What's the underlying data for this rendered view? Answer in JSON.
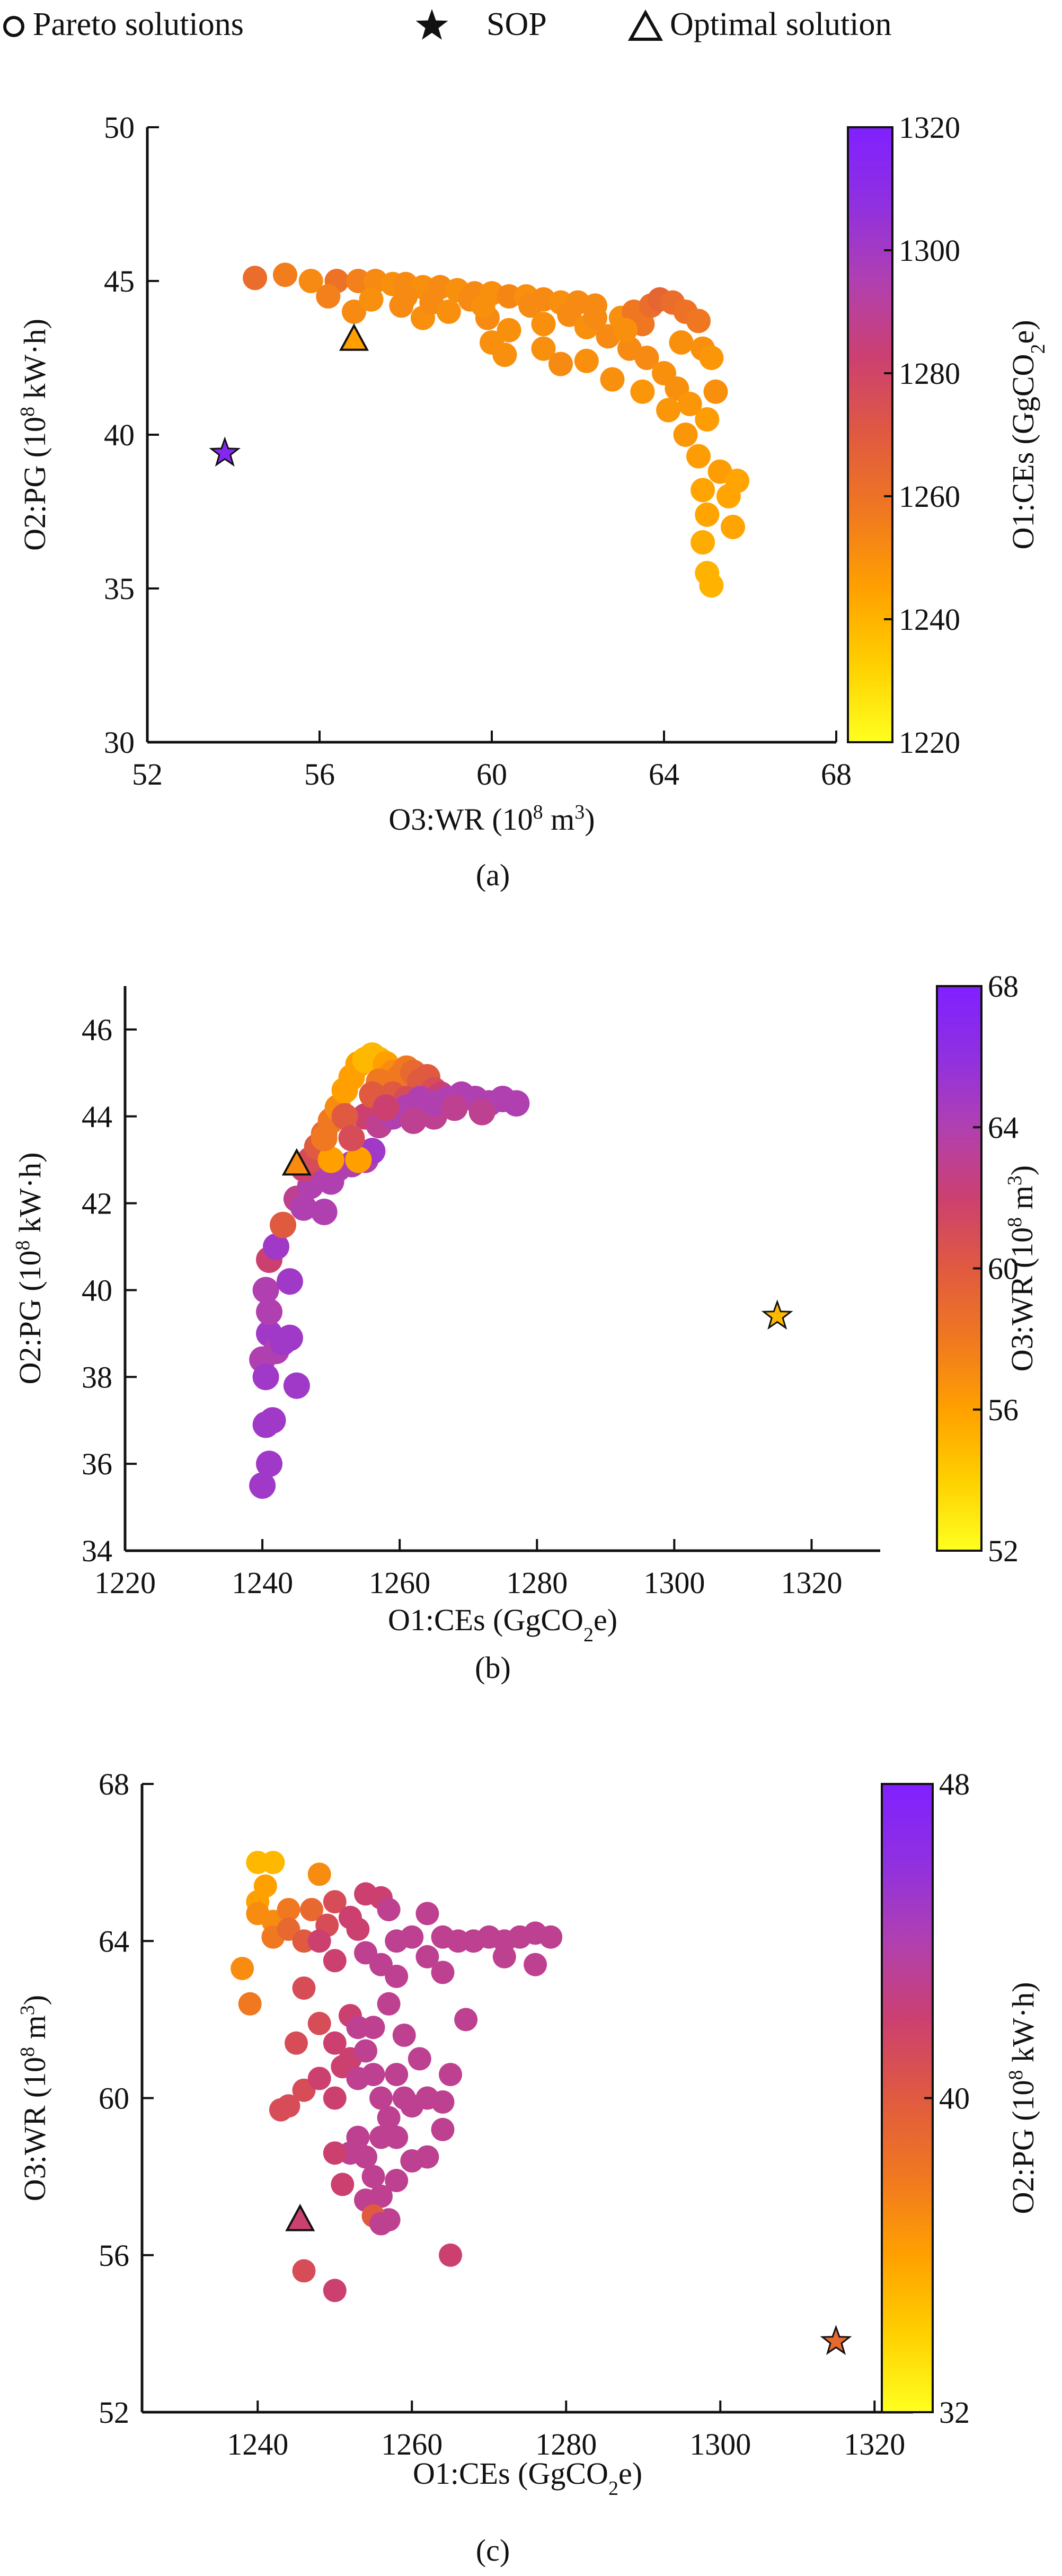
{
  "legend": {
    "items": [
      {
        "label": "Pareto solutions",
        "marker": "circle-icon"
      },
      {
        "label": "SOP",
        "marker": "star-icon"
      },
      {
        "label": "Optimal solution",
        "marker": "triangle-icon"
      }
    ]
  },
  "colors": {
    "axis": "#111111",
    "gradient": [
      "#ffff20",
      "#ffd000",
      "#ffa000",
      "#f07820",
      "#e05a40",
      "#cc4070",
      "#b040b0",
      "#9030e0",
      "#8020ff"
    ]
  },
  "chart_data": [
    {
      "type": "scatter",
      "caption": "(a)",
      "xlabel": {
        "pre": "O3:WR (10",
        "sup": "8",
        "mid": " m",
        "sup2": "3",
        "post": ")"
      },
      "ylabel": {
        "pre": "O2:PG (10",
        "sup": "8",
        "post": " kW·h)"
      },
      "clabel": {
        "pre": "O1:CEs (GgCO",
        "sub": "2",
        "post": "e)"
      },
      "xlim": [
        52,
        68
      ],
      "ylim": [
        30,
        50
      ],
      "clim": [
        1220,
        1320
      ],
      "xticks": [
        52,
        56,
        60,
        64,
        68
      ],
      "yticks": [
        30,
        35,
        40,
        45,
        50
      ],
      "cticks": [
        1220,
        1240,
        1260,
        1280,
        1300,
        1320
      ],
      "sop": {
        "x": 53.8,
        "y": 39.4,
        "c": 1315
      },
      "optimal": {
        "x": 56.8,
        "y": 43.1,
        "c": 1245
      },
      "points": [
        [
          54.5,
          45.1,
          1262
        ],
        [
          55.2,
          45.2,
          1256
        ],
        [
          55.8,
          45.0,
          1252
        ],
        [
          56.4,
          45.0,
          1260
        ],
        [
          56.9,
          45.0,
          1255
        ],
        [
          57.3,
          45.0,
          1252
        ],
        [
          57.7,
          44.9,
          1250
        ],
        [
          58.0,
          44.9,
          1252
        ],
        [
          58.4,
          44.8,
          1250
        ],
        [
          58.8,
          44.8,
          1252
        ],
        [
          59.2,
          44.7,
          1250
        ],
        [
          59.6,
          44.6,
          1252
        ],
        [
          60.0,
          44.6,
          1250
        ],
        [
          60.4,
          44.5,
          1253
        ],
        [
          60.8,
          44.5,
          1250
        ],
        [
          61.2,
          44.4,
          1252
        ],
        [
          61.6,
          44.3,
          1250
        ],
        [
          62.0,
          44.3,
          1252
        ],
        [
          62.4,
          44.2,
          1252
        ],
        [
          56.2,
          44.5,
          1255
        ],
        [
          56.8,
          44.0,
          1252
        ],
        [
          57.2,
          44.4,
          1250
        ],
        [
          57.9,
          44.2,
          1252
        ],
        [
          58.4,
          43.8,
          1250
        ],
        [
          58.6,
          44.3,
          1252
        ],
        [
          59.0,
          44.0,
          1250
        ],
        [
          59.5,
          44.4,
          1252
        ],
        [
          59.9,
          43.8,
          1252
        ],
        [
          60.4,
          43.4,
          1250
        ],
        [
          60.9,
          44.2,
          1252
        ],
        [
          61.2,
          43.6,
          1250
        ],
        [
          61.8,
          43.9,
          1252
        ],
        [
          62.2,
          43.5,
          1250
        ],
        [
          62.7,
          43.2,
          1252
        ],
        [
          63.0,
          43.8,
          1250
        ],
        [
          63.3,
          44.0,
          1258
        ],
        [
          63.5,
          43.6,
          1258
        ],
        [
          63.7,
          44.2,
          1262
        ],
        [
          63.9,
          44.4,
          1265
        ],
        [
          64.2,
          44.3,
          1262
        ],
        [
          64.5,
          44.0,
          1260
        ],
        [
          64.8,
          43.7,
          1258
        ],
        [
          63.2,
          42.8,
          1252
        ],
        [
          63.6,
          42.5,
          1252
        ],
        [
          64.0,
          42.0,
          1250
        ],
        [
          64.3,
          41.5,
          1250
        ],
        [
          64.6,
          41.0,
          1248
        ],
        [
          64.9,
          42.8,
          1250
        ],
        [
          65.1,
          42.5,
          1248
        ],
        [
          65.2,
          41.4,
          1250
        ],
        [
          60.0,
          43.0,
          1250
        ],
        [
          60.3,
          42.6,
          1250
        ],
        [
          61.2,
          42.8,
          1250
        ],
        [
          62.2,
          42.4,
          1250
        ],
        [
          61.6,
          42.3,
          1252
        ],
        [
          62.8,
          41.8,
          1250
        ],
        [
          63.5,
          41.4,
          1248
        ],
        [
          64.1,
          40.8,
          1248
        ],
        [
          64.5,
          40.0,
          1248
        ],
        [
          64.8,
          39.3,
          1246
        ],
        [
          65.0,
          40.5,
          1246
        ],
        [
          65.3,
          38.8,
          1246
        ],
        [
          65.7,
          38.5,
          1244
        ],
        [
          65.5,
          38.0,
          1244
        ],
        [
          65.6,
          37.0,
          1244
        ],
        [
          65.0,
          37.4,
          1244
        ],
        [
          64.9,
          36.5,
          1242
        ],
        [
          65.0,
          35.5,
          1240
        ],
        [
          65.1,
          35.1,
          1240
        ],
        [
          64.9,
          38.2,
          1244
        ],
        [
          58.0,
          44.5,
          1252
        ],
        [
          59.8,
          44.2,
          1250
        ],
        [
          62.4,
          43.8,
          1252
        ],
        [
          63.1,
          43.4,
          1250
        ],
        [
          64.4,
          43.0,
          1250
        ]
      ]
    },
    {
      "type": "scatter",
      "caption": "(b)",
      "xlabel": {
        "pre": "O1:CEs (GgCO",
        "sub": "2",
        "post": "e)"
      },
      "ylabel": {
        "pre": "O2:PG (10",
        "sup": "8",
        "post": " kW·h)"
      },
      "clabel": {
        "pre": "O3:WR (10",
        "sup": "8",
        "mid": " m",
        "sup2": "3",
        "post": ")"
      },
      "xlim": [
        1220,
        1330
      ],
      "ylim": [
        34,
        47
      ],
      "clim": [
        52,
        68
      ],
      "xticks": [
        1220,
        1240,
        1260,
        1280,
        1300,
        1320
      ],
      "yticks": [
        34,
        36,
        38,
        40,
        42,
        44,
        46
      ],
      "cticks": [
        52,
        56,
        60,
        64,
        68
      ],
      "sop": {
        "x": 1315,
        "y": 39.4,
        "c": 55
      },
      "optimal": {
        "x": 1245,
        "y": 42.9,
        "c": 57
      },
      "points": [
        [
          1240,
          35.5,
          65
        ],
        [
          1240.5,
          36.9,
          65
        ],
        [
          1241.5,
          37.0,
          65
        ],
        [
          1241,
          36.0,
          65
        ],
        [
          1240,
          38.4,
          64
        ],
        [
          1240.5,
          38.0,
          65
        ],
        [
          1241,
          39.0,
          65
        ],
        [
          1241,
          39.5,
          64
        ],
        [
          1240.5,
          40.0,
          64
        ],
        [
          1241,
          40.7,
          62
        ],
        [
          1242,
          41.0,
          65
        ],
        [
          1242,
          38.6,
          64
        ],
        [
          1243,
          38.8,
          65
        ],
        [
          1244,
          38.9,
          65
        ],
        [
          1244,
          40.2,
          65
        ],
        [
          1245,
          37.8,
          65
        ],
        [
          1243,
          41.5,
          60
        ],
        [
          1245,
          42.1,
          63
        ],
        [
          1246,
          41.9,
          64
        ],
        [
          1247,
          42.4,
          64
        ],
        [
          1248,
          42.7,
          64
        ],
        [
          1249,
          41.8,
          64
        ],
        [
          1250,
          42.5,
          64
        ],
        [
          1251,
          42.8,
          64
        ],
        [
          1253,
          42.9,
          64
        ],
        [
          1255,
          43.0,
          64
        ],
        [
          1256,
          43.2,
          65
        ],
        [
          1246,
          42.8,
          62
        ],
        [
          1247,
          43.0,
          61
        ],
        [
          1248,
          43.3,
          60
        ],
        [
          1249,
          43.6,
          59
        ],
        [
          1250,
          43.9,
          58
        ],
        [
          1251,
          44.2,
          57
        ],
        [
          1252,
          44.6,
          56
        ],
        [
          1253,
          44.9,
          56
        ],
        [
          1254,
          45.2,
          56
        ],
        [
          1255,
          45.3,
          55
        ],
        [
          1256,
          45.4,
          55
        ],
        [
          1257,
          45.3,
          55
        ],
        [
          1258,
          45.2,
          56
        ],
        [
          1259,
          45.0,
          57
        ],
        [
          1260,
          44.9,
          58
        ],
        [
          1261,
          45.1,
          58
        ],
        [
          1262,
          45.0,
          59
        ],
        [
          1263,
          44.8,
          60
        ],
        [
          1264,
          44.9,
          60
        ],
        [
          1265,
          44.6,
          61
        ],
        [
          1266,
          44.5,
          62
        ],
        [
          1257,
          44.8,
          58
        ],
        [
          1259,
          44.5,
          60
        ],
        [
          1261,
          44.4,
          61
        ],
        [
          1263,
          44.2,
          62
        ],
        [
          1265,
          44.0,
          63
        ],
        [
          1255,
          44.0,
          62
        ],
        [
          1257,
          43.8,
          63
        ],
        [
          1259,
          44.0,
          64
        ],
        [
          1261,
          44.2,
          64
        ],
        [
          1263,
          44.4,
          64
        ],
        [
          1265,
          44.3,
          64
        ],
        [
          1267,
          44.4,
          64
        ],
        [
          1269,
          44.5,
          64
        ],
        [
          1271,
          44.4,
          64
        ],
        [
          1273,
          44.3,
          64
        ],
        [
          1275,
          44.4,
          64
        ],
        [
          1277,
          44.3,
          64
        ],
        [
          1272,
          44.1,
          63
        ],
        [
          1268,
          44.2,
          63
        ],
        [
          1250,
          43.0,
          56
        ],
        [
          1254,
          43.0,
          56
        ],
        [
          1249,
          43.5,
          58
        ],
        [
          1252,
          44.0,
          60
        ],
        [
          1253,
          43.5,
          61
        ],
        [
          1256,
          44.5,
          60
        ],
        [
          1258,
          44.2,
          62
        ],
        [
          1262,
          43.9,
          63
        ]
      ]
    },
    {
      "type": "scatter",
      "caption": "(c)",
      "xlabel": {
        "pre": "O1:CEs (GgCO",
        "sub": "2",
        "post": "e)"
      },
      "ylabel": {
        "pre": "O3:WR (10",
        "sup": "8",
        "mid": " m",
        "sup2": "3",
        "post": ")"
      },
      "clabel": {
        "pre": "O2:PG (10",
        "sup": "8",
        "post": " kW·h)"
      },
      "xlim": [
        1225,
        1325
      ],
      "ylim": [
        52,
        68
      ],
      "clim": [
        32,
        48
      ],
      "xticks": [
        1240,
        1260,
        1280,
        1300,
        1320
      ],
      "yticks": [
        52,
        56,
        60,
        64,
        68
      ],
      "cticks": [
        32,
        40,
        48
      ],
      "sop": {
        "x": 1315,
        "y": 53.8,
        "c": 39
      },
      "optimal": {
        "x": 1245.5,
        "y": 56.9,
        "c": 42
      },
      "points": [
        [
          1240,
          66.0,
          35
        ],
        [
          1242,
          66.0,
          35
        ],
        [
          1240,
          65.0,
          36
        ],
        [
          1241,
          65.4,
          36
        ],
        [
          1240,
          64.7,
          37
        ],
        [
          1242,
          64.5,
          37
        ],
        [
          1244,
          64.8,
          38
        ],
        [
          1238,
          63.3,
          37
        ],
        [
          1239,
          62.4,
          38
        ],
        [
          1242,
          64.1,
          38
        ],
        [
          1244,
          64.3,
          39
        ],
        [
          1246,
          64.0,
          40
        ],
        [
          1248,
          65.7,
          37
        ],
        [
          1247,
          64.8,
          39
        ],
        [
          1249,
          64.4,
          41
        ],
        [
          1250,
          65.0,
          41
        ],
        [
          1252,
          64.6,
          42
        ],
        [
          1253,
          64.3,
          42
        ],
        [
          1254,
          65.2,
          42
        ],
        [
          1256,
          65.1,
          42
        ],
        [
          1257,
          64.8,
          43
        ],
        [
          1258,
          64.0,
          43
        ],
        [
          1260,
          64.1,
          43
        ],
        [
          1262,
          64.7,
          43
        ],
        [
          1264,
          64.1,
          43
        ],
        [
          1266,
          64.0,
          43
        ],
        [
          1268,
          64.0,
          43
        ],
        [
          1270,
          64.1,
          43
        ],
        [
          1272,
          64.0,
          43
        ],
        [
          1274,
          64.1,
          43
        ],
        [
          1276,
          64.2,
          43
        ],
        [
          1278,
          64.1,
          43
        ],
        [
          1276,
          63.4,
          43
        ],
        [
          1272,
          63.6,
          43
        ],
        [
          1264,
          63.2,
          43
        ],
        [
          1262,
          63.6,
          43
        ],
        [
          1258,
          63.1,
          43
        ],
        [
          1246,
          62.8,
          41
        ],
        [
          1248,
          61.9,
          41
        ],
        [
          1250,
          61.4,
          42
        ],
        [
          1252,
          62.1,
          42
        ],
        [
          1245,
          61.4,
          41
        ],
        [
          1243,
          59.7,
          41
        ],
        [
          1244,
          59.8,
          41
        ],
        [
          1246,
          60.2,
          41
        ],
        [
          1248,
          60.5,
          42
        ],
        [
          1250,
          60.0,
          42
        ],
        [
          1251,
          60.8,
          42
        ],
        [
          1252,
          61.0,
          42
        ],
        [
          1253,
          60.5,
          43
        ],
        [
          1254,
          61.2,
          43
        ],
        [
          1255,
          60.6,
          43
        ],
        [
          1256,
          60.0,
          43
        ],
        [
          1257,
          59.5,
          43
        ],
        [
          1258,
          59.0,
          43
        ],
        [
          1259,
          60.0,
          43
        ],
        [
          1260,
          59.8,
          43
        ],
        [
          1262,
          60.0,
          43
        ],
        [
          1264,
          59.9,
          43
        ],
        [
          1265,
          60.6,
          43
        ],
        [
          1267,
          62.0,
          43
        ],
        [
          1264,
          59.2,
          43
        ],
        [
          1262,
          58.5,
          43
        ],
        [
          1260,
          58.4,
          43
        ],
        [
          1258,
          57.9,
          43
        ],
        [
          1256,
          57.5,
          43
        ],
        [
          1255,
          58.0,
          43
        ],
        [
          1254,
          58.5,
          43
        ],
        [
          1253,
          59.0,
          43
        ],
        [
          1252,
          58.6,
          43
        ],
        [
          1250,
          58.6,
          42
        ],
        [
          1251,
          57.8,
          42
        ],
        [
          1254,
          57.4,
          43
        ],
        [
          1257,
          56.9,
          43
        ],
        [
          1255,
          57.0,
          40
        ],
        [
          1256,
          56.8,
          43
        ],
        [
          1265,
          56.0,
          42
        ],
        [
          1246,
          55.6,
          41
        ],
        [
          1250,
          55.1,
          42
        ],
        [
          1255,
          61.8,
          43
        ],
        [
          1257,
          62.4,
          43
        ],
        [
          1259,
          61.6,
          43
        ],
        [
          1256,
          63.4,
          43
        ],
        [
          1254,
          63.7,
          43
        ],
        [
          1250,
          63.5,
          42
        ],
        [
          1248,
          64.0,
          42
        ],
        [
          1256,
          59.0,
          43
        ],
        [
          1258,
          60.6,
          43
        ],
        [
          1253,
          61.8,
          43
        ],
        [
          1261,
          61.0,
          43
        ]
      ]
    }
  ]
}
